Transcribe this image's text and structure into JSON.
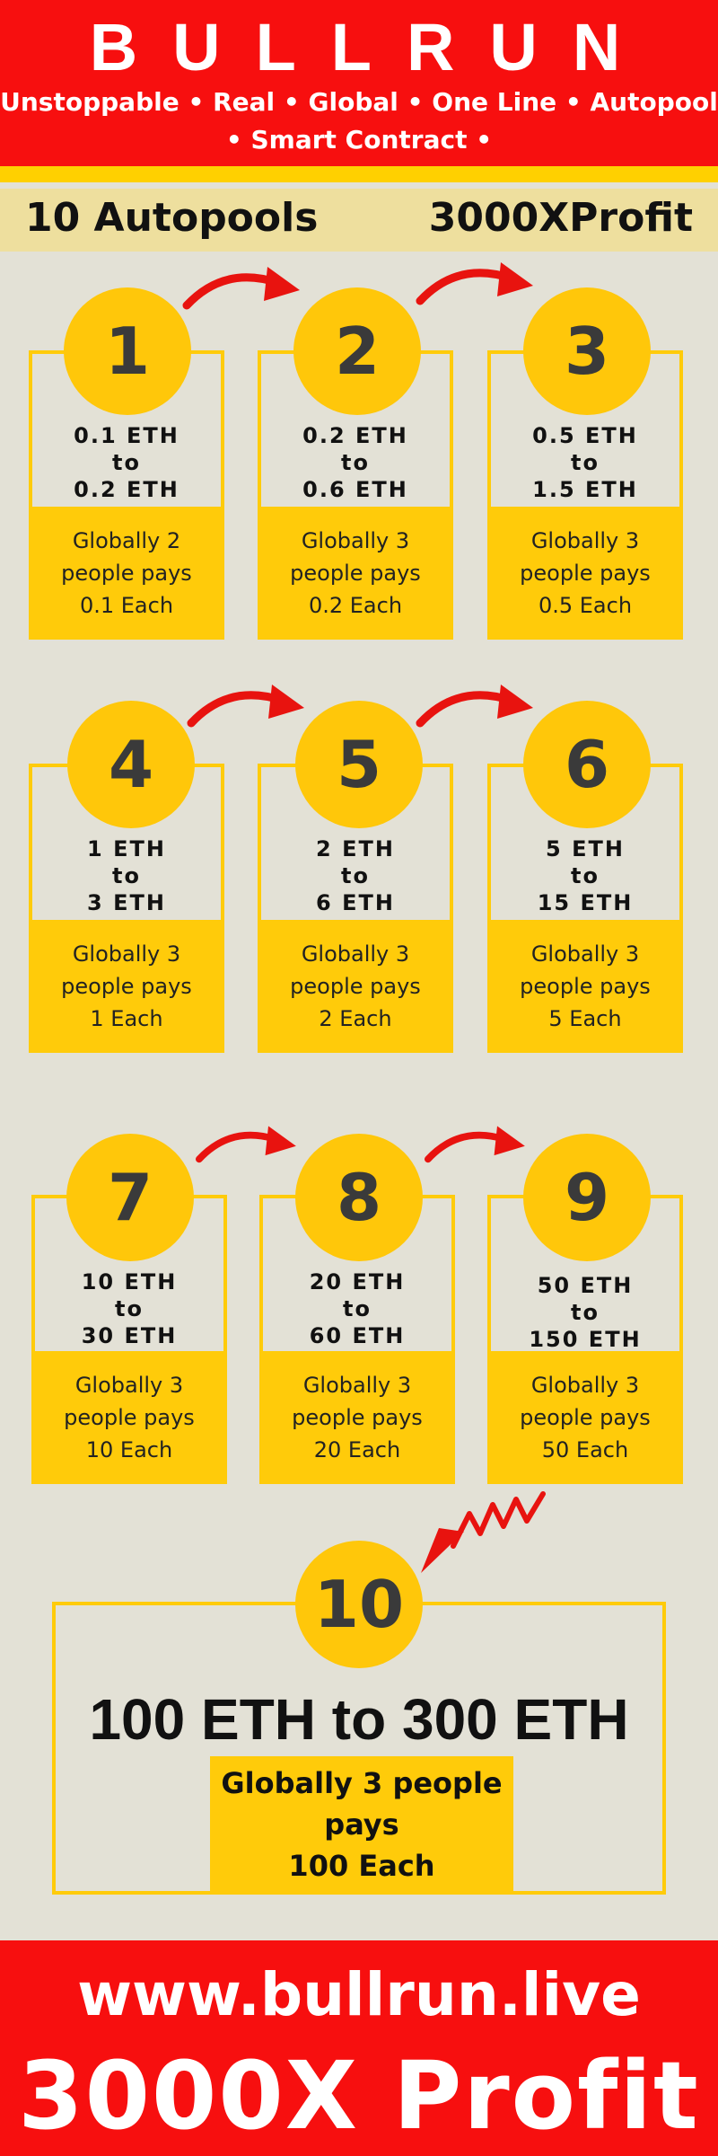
{
  "header": {
    "brand": "BULLRUN",
    "tagline_line1": "Unstoppable • Real • Global • One Line • Autopool",
    "tagline_line2": "• Smart Contract •"
  },
  "subbar": {
    "left": "10 Autopools",
    "right": "3000XProfit"
  },
  "colors": {
    "red": "#f70f0f",
    "yellow": "#ffcb0a",
    "background": "#e3e1d6",
    "sand": "#eedf9e"
  },
  "pools": [
    {
      "num": "1",
      "range_from": "0.1 ETH",
      "to": "to",
      "range_to": "0.2 ETH",
      "pays_l1": "Globally 2",
      "pays_l2": "people pays",
      "pays_l3": "0.1 Each"
    },
    {
      "num": "2",
      "range_from": "0.2 ETH",
      "to": "to",
      "range_to": "0.6 ETH",
      "pays_l1": "Globally 3",
      "pays_l2": "people pays",
      "pays_l3": "0.2 Each"
    },
    {
      "num": "3",
      "range_from": "0.5 ETH",
      "to": "to",
      "range_to": "1.5 ETH",
      "pays_l1": "Globally 3",
      "pays_l2": "people pays",
      "pays_l3": "0.5 Each"
    },
    {
      "num": "4",
      "range_from": "1 ETH",
      "to": "to",
      "range_to": "3 ETH",
      "pays_l1": "Globally 3",
      "pays_l2": "people pays",
      "pays_l3": "1 Each"
    },
    {
      "num": "5",
      "range_from": "2 ETH",
      "to": "to",
      "range_to": "6 ETH",
      "pays_l1": "Globally 3",
      "pays_l2": "people pays",
      "pays_l3": "2 Each"
    },
    {
      "num": "6",
      "range_from": "5 ETH",
      "to": "to",
      "range_to": "15 ETH",
      "pays_l1": "Globally 3",
      "pays_l2": "people pays",
      "pays_l3": "5 Each"
    },
    {
      "num": "7",
      "range_from": "10 ETH",
      "to": "to",
      "range_to": "30 ETH",
      "pays_l1": "Globally 3",
      "pays_l2": "people pays",
      "pays_l3": "10 Each"
    },
    {
      "num": "8",
      "range_from": "20 ETH",
      "to": "to",
      "range_to": "60 ETH",
      "pays_l1": "Globally 3",
      "pays_l2": "people pays",
      "pays_l3": "20 Each"
    },
    {
      "num": "9",
      "range_from": "50 ETH",
      "to": "to",
      "range_to": "150 ETH",
      "pays_l1": "Globally 3",
      "pays_l2": "people pays",
      "pays_l3": "50 Each"
    }
  ],
  "pool10": {
    "num": "10",
    "range": "100 ETH to 300 ETH",
    "pays_l1": "Globally 3 people",
    "pays_l2": "pays",
    "pays_l3": "100 Each"
  },
  "footer": {
    "url": "www.bullrun.live",
    "profit": "3000X Profit"
  }
}
